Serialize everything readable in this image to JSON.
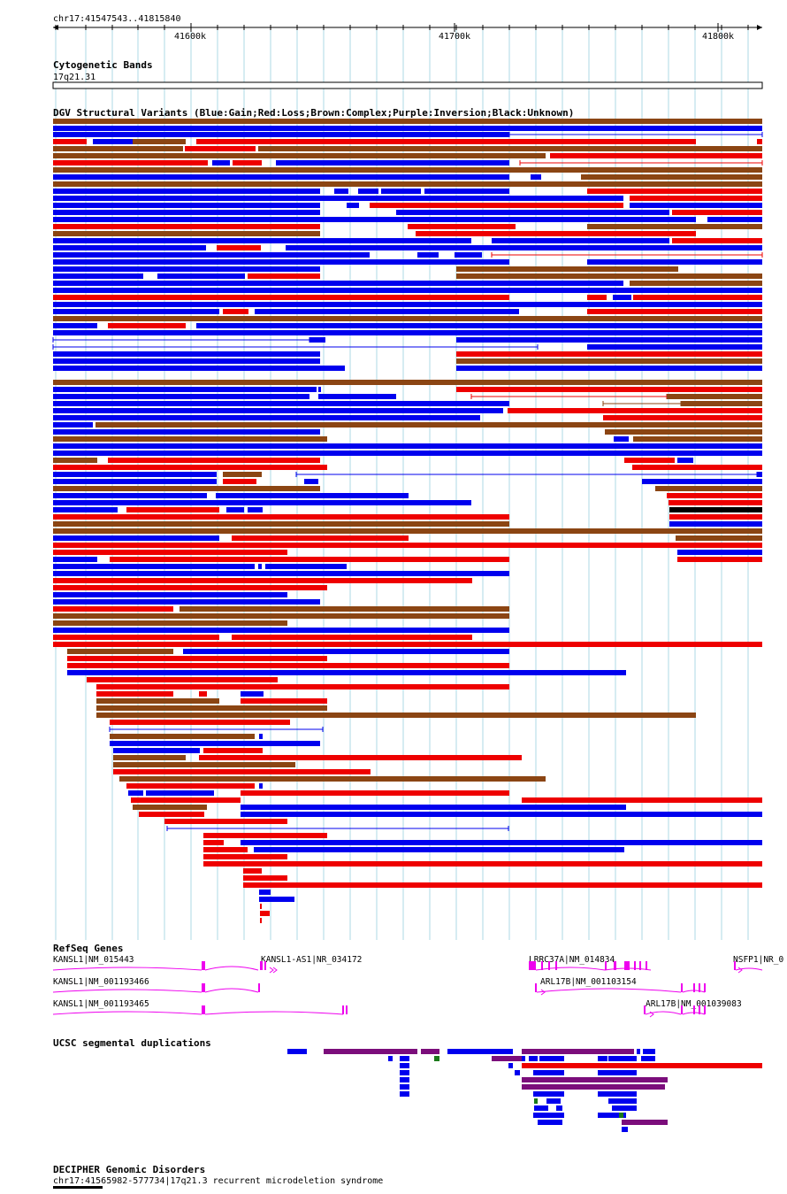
{
  "location": "chr17:41547543..41815840",
  "ruler": {
    "ticks": [
      {
        "label": "41600k",
        "pos": 41600000
      },
      {
        "label": "41700k",
        "pos": 41700000
      },
      {
        "label": "41800k",
        "pos": 41800000
      }
    ]
  },
  "tracks": {
    "cytoband": {
      "title": "Cytogenetic Bands",
      "band": "17q21.31"
    },
    "dgv": {
      "title": "DGV Structural Variants (Blue:Gain;Red:Loss;Brown:Complex;Purple:Inversion;Black:Unknown)"
    },
    "refseq": {
      "title": "RefSeq Genes",
      "genes": [
        "KANSL1|NM_015443",
        "KANSL1-AS1|NR_034172",
        "LRRC37A|NM_014834",
        "NSFP1|NR_0",
        "KANSL1|NM_001193466",
        "ARL17B|NM_001103154",
        "KANSL1|NM_001193465",
        "ARL17B|NM_001039083"
      ]
    },
    "segdups": {
      "title": "UCSC segmental duplications"
    },
    "decipher": {
      "title": "DECIPHER Genomic Disorders",
      "feature": "chr17:41565982-577734|17q21.3 recurrent microdeletion syndrome"
    }
  },
  "colors": {
    "gain": "#0000ee",
    "loss": "#ee0000",
    "complex": "#8b4513",
    "unknown": "#000000",
    "gene": "#ee00ee",
    "segdup_blue": "#0000ee",
    "segdup_purple": "#7b0d7b",
    "segdup_green": "#1a7a1a",
    "gridline": "#add8e6"
  }
}
